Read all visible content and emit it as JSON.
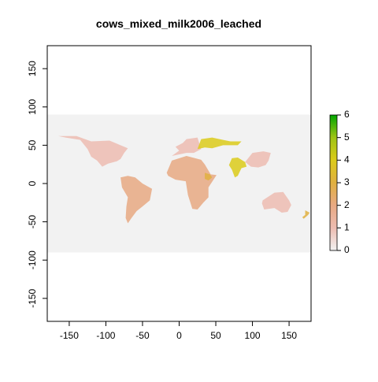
{
  "chart_data": {
    "type": "heatmap",
    "title": "cows_mixed_milk2006_leached",
    "xlabel": "",
    "ylabel": "",
    "xlim": [
      -180,
      180
    ],
    "ylim": [
      -180,
      180
    ],
    "x_ticks": [
      -150,
      -100,
      -50,
      0,
      50,
      100,
      150
    ],
    "y_ticks": [
      -150,
      -100,
      -50,
      0,
      50,
      100,
      150
    ],
    "raster_extent": {
      "lon": [
        -180,
        180
      ],
      "lat": [
        -90,
        90
      ]
    },
    "background_fill_color": "#F2F2F2",
    "grid": false,
    "legend": {
      "placement": "right",
      "ticks": [
        0,
        1,
        2,
        3,
        4,
        5,
        6
      ],
      "range": [
        0,
        6
      ],
      "colors": [
        "#F2F2F2",
        "#EDBCB1",
        "#E8A983",
        "#E0B040",
        "#DCCB1A",
        "#9FC414",
        "#00A600"
      ]
    },
    "regions": [
      {
        "name": "North America",
        "value_level": 1,
        "color": "#EDBCB1"
      },
      {
        "name": "South America",
        "value_level": 1.5,
        "color": "#E8A983"
      },
      {
        "name": "Europe",
        "value_level": 1,
        "color": "#EDBCB1"
      },
      {
        "name": "Eastern Europe / Russia",
        "value_level": 3.3,
        "color": "#DCCB1A"
      },
      {
        "name": "Africa",
        "value_level": 1.5,
        "color": "#E8A983"
      },
      {
        "name": "Ethiopian highlands",
        "value_level": 2.5,
        "color": "#E0B040"
      },
      {
        "name": "South Asia",
        "value_level": 3.5,
        "color": "#DCCB1A"
      },
      {
        "name": "China",
        "value_level": 1.2,
        "color": "#EDBCB1"
      },
      {
        "name": "Australia",
        "value_level": 1,
        "color": "#EDBCB1"
      },
      {
        "name": "New Zealand",
        "value_level": 2.5,
        "color": "#E0B040"
      }
    ]
  }
}
